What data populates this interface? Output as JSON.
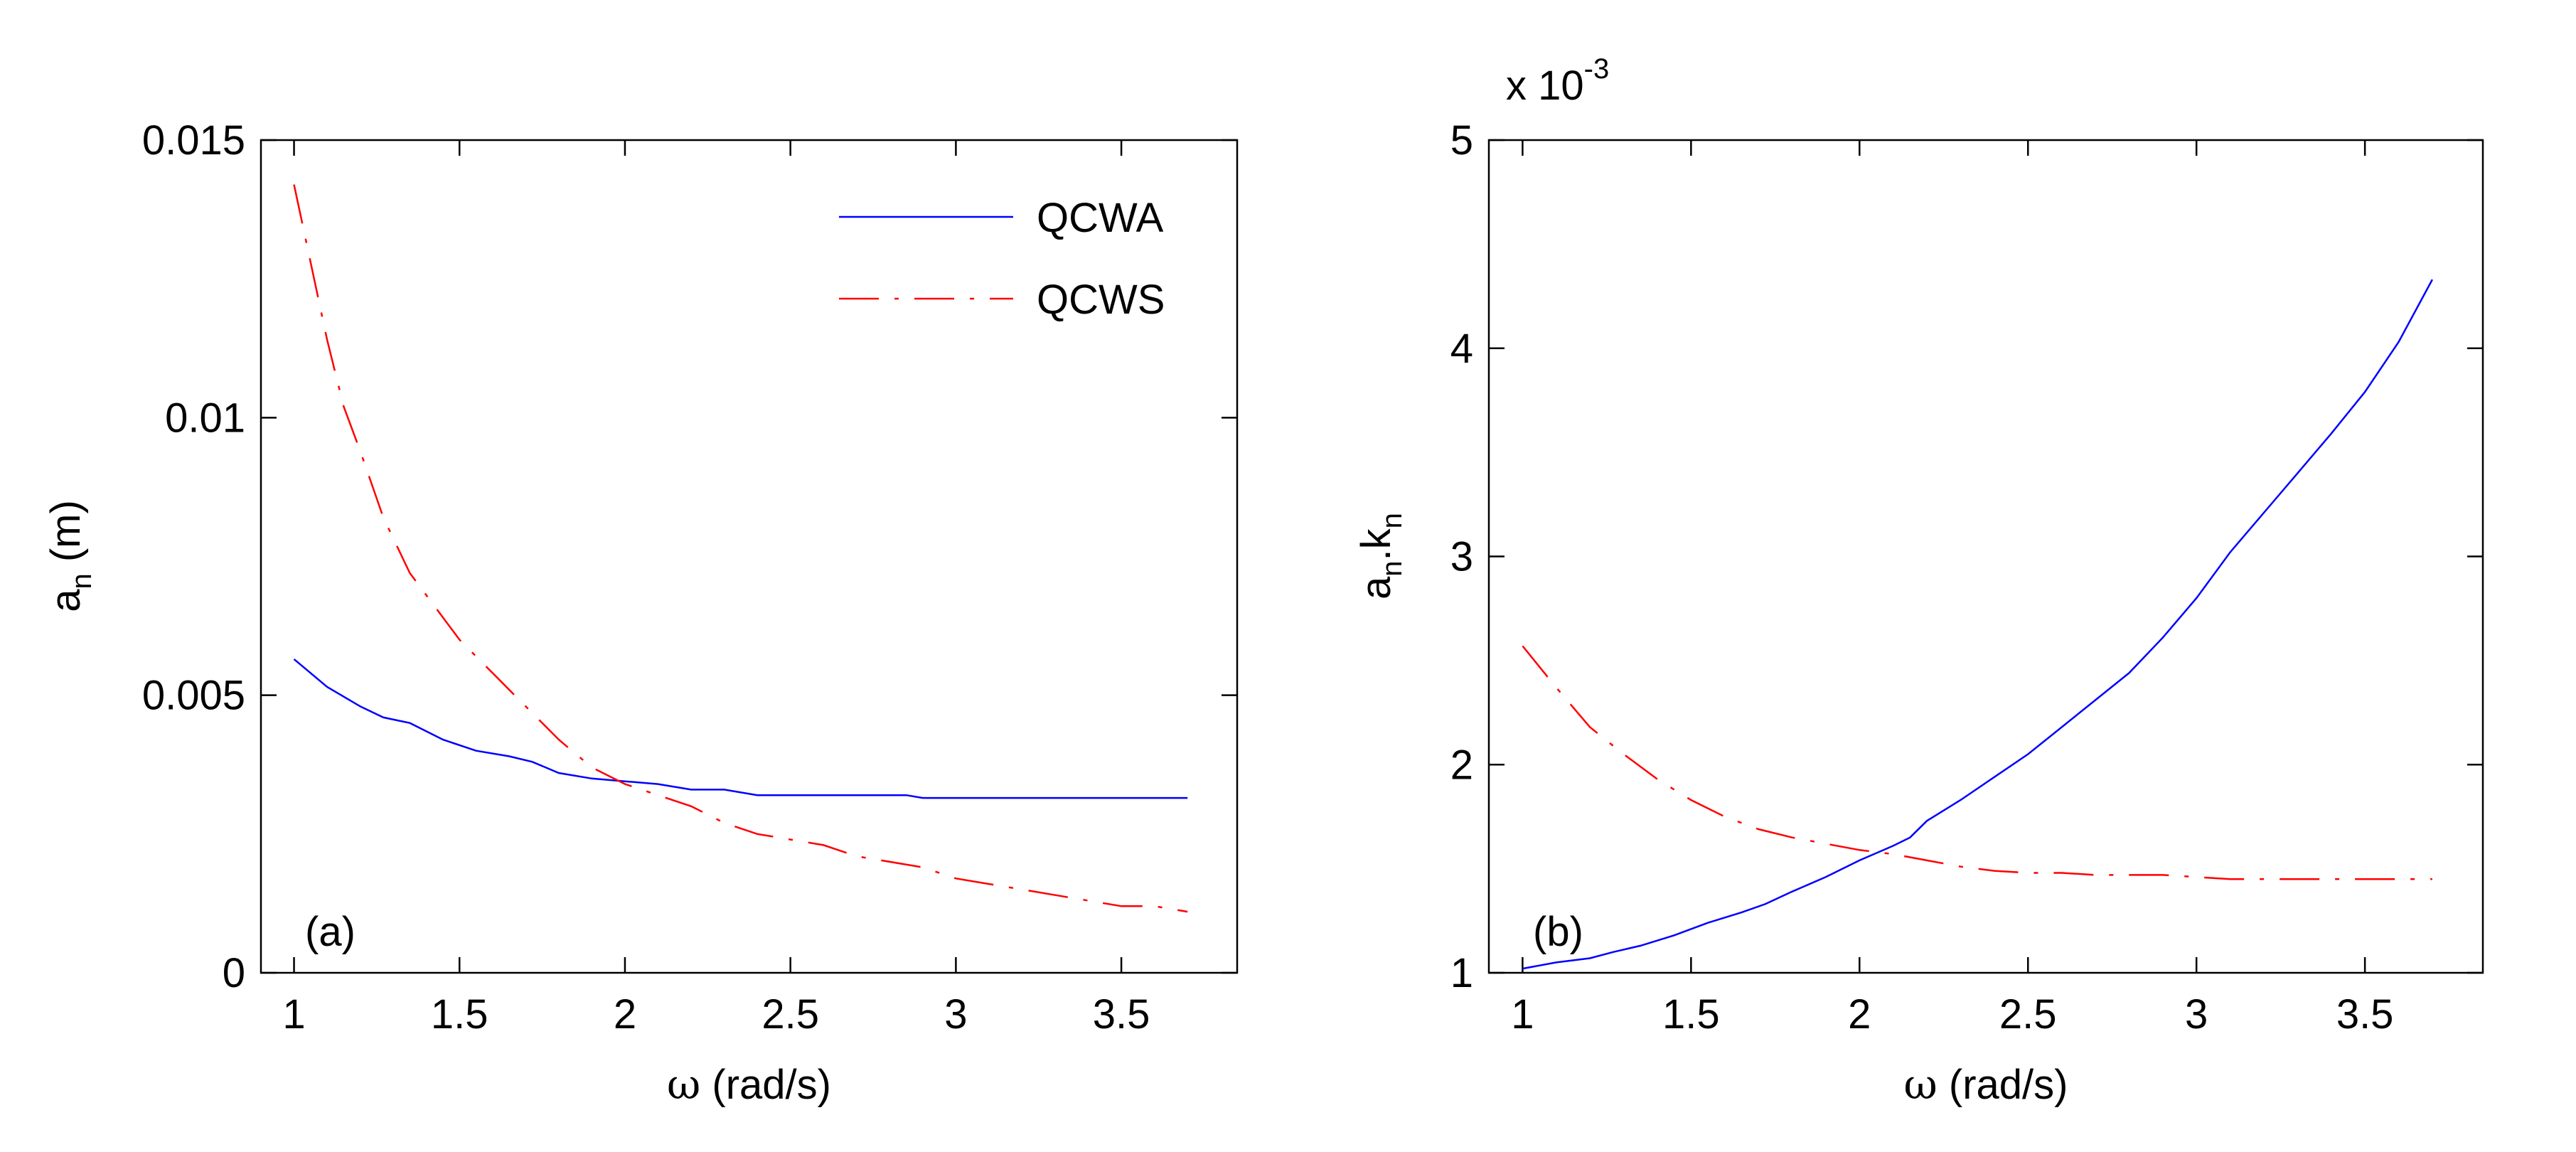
{
  "chart_data": [
    {
      "type": "line",
      "panel_label": "(a)",
      "xlabel_symbol": "ω",
      "xlabel_unit": " (rad/s)",
      "ylabel_main": "a",
      "ylabel_sub": "n",
      "ylabel_unit": " (m)",
      "xlim": [
        0.9,
        3.85
      ],
      "ylim": [
        0,
        0.015
      ],
      "xticks": [
        1,
        1.5,
        2,
        2.5,
        3,
        3.5
      ],
      "xtick_labels": [
        "1",
        "1.5",
        "2",
        "2.5",
        "3",
        "3.5"
      ],
      "yticks": [
        0,
        0.005,
        0.01,
        0.015
      ],
      "ytick_labels": [
        "0",
        "0.005",
        "0.01",
        "0.015"
      ],
      "legend": "top-right",
      "grid": false,
      "series": [
        {
          "name": "QCWA",
          "color": "#0000ff",
          "dash": "solid",
          "x": [
            1.0,
            1.1,
            1.2,
            1.27,
            1.35,
            1.45,
            1.55,
            1.65,
            1.72,
            1.8,
            1.9,
            2.0,
            2.1,
            2.2,
            2.3,
            2.4,
            2.5,
            2.6,
            2.7,
            2.8,
            2.85,
            2.9,
            3.0,
            3.2,
            3.4,
            3.7
          ],
          "y": [
            0.00565,
            0.00515,
            0.0048,
            0.0046,
            0.0045,
            0.0042,
            0.004,
            0.0039,
            0.0038,
            0.0036,
            0.0035,
            0.00345,
            0.0034,
            0.0033,
            0.0033,
            0.0032,
            0.0032,
            0.0032,
            0.0032,
            0.0032,
            0.0032,
            0.00315,
            0.00315,
            0.00315,
            0.00315,
            0.00315
          ]
        },
        {
          "name": "QCWS",
          "color": "#ff0000",
          "dash": "dashdot",
          "x": [
            1.0,
            1.05,
            1.1,
            1.15,
            1.2,
            1.27,
            1.35,
            1.4,
            1.5,
            1.6,
            1.7,
            1.8,
            1.9,
            2.0,
            2.1,
            2.2,
            2.3,
            2.4,
            2.5,
            2.6,
            2.7,
            2.8,
            2.9,
            3.0,
            3.1,
            3.2,
            3.3,
            3.4,
            3.5,
            3.6,
            3.7
          ],
          "y": [
            0.0142,
            0.0128,
            0.0114,
            0.0102,
            0.0094,
            0.0082,
            0.0072,
            0.0068,
            0.006,
            0.0054,
            0.0048,
            0.0042,
            0.0037,
            0.0034,
            0.0032,
            0.003,
            0.0027,
            0.0025,
            0.0024,
            0.0023,
            0.0021,
            0.002,
            0.0019,
            0.0017,
            0.0016,
            0.0015,
            0.0014,
            0.0013,
            0.0012,
            0.0012,
            0.0011
          ]
        }
      ]
    },
    {
      "type": "line",
      "panel_label": "(b)",
      "xlabel_symbol": "ω",
      "xlabel_unit": " (rad/s)",
      "ylabel_parts": [
        "a",
        "n",
        ".k",
        "n"
      ],
      "multiplier_base": "x 10",
      "multiplier_exp": "-3",
      "xlim": [
        0.9,
        3.85
      ],
      "ylim": [
        1,
        5
      ],
      "xticks": [
        1,
        1.5,
        2,
        2.5,
        3,
        3.5
      ],
      "xtick_labels": [
        "1",
        "1.5",
        "2",
        "2.5",
        "3",
        "3.5"
      ],
      "yticks": [
        1,
        2,
        3,
        4,
        5
      ],
      "ytick_labels": [
        "1",
        "2",
        "3",
        "4",
        "5"
      ],
      "grid": false,
      "series": [
        {
          "color": "#0000ff",
          "dash": "solid",
          "x": [
            1.0,
            1.1,
            1.2,
            1.27,
            1.35,
            1.45,
            1.55,
            1.65,
            1.72,
            1.8,
            1.9,
            2.0,
            2.1,
            2.15,
            2.2,
            2.3,
            2.4,
            2.5,
            2.6,
            2.7,
            2.8,
            2.9,
            3.0,
            3.1,
            3.2,
            3.3,
            3.4,
            3.5,
            3.6,
            3.7
          ],
          "y": [
            1.02,
            1.05,
            1.07,
            1.1,
            1.13,
            1.18,
            1.24,
            1.29,
            1.33,
            1.39,
            1.46,
            1.54,
            1.61,
            1.65,
            1.73,
            1.83,
            1.94,
            2.05,
            2.18,
            2.31,
            2.44,
            2.61,
            2.8,
            3.02,
            3.21,
            3.4,
            3.59,
            3.79,
            4.03,
            4.33
          ]
        },
        {
          "color": "#ff0000",
          "dash": "dashdot",
          "x": [
            1.0,
            1.1,
            1.2,
            1.3,
            1.4,
            1.5,
            1.6,
            1.7,
            1.8,
            1.9,
            2.0,
            2.1,
            2.2,
            2.3,
            2.4,
            2.5,
            2.6,
            2.7,
            2.8,
            2.9,
            3.0,
            3.1,
            3.2,
            3.3,
            3.4,
            3.5,
            3.6,
            3.7
          ],
          "y": [
            2.57,
            2.37,
            2.18,
            2.05,
            1.93,
            1.83,
            1.75,
            1.69,
            1.65,
            1.62,
            1.59,
            1.57,
            1.54,
            1.51,
            1.49,
            1.48,
            1.48,
            1.47,
            1.47,
            1.47,
            1.46,
            1.45,
            1.45,
            1.45,
            1.45,
            1.45,
            1.45,
            1.45
          ]
        }
      ]
    }
  ]
}
